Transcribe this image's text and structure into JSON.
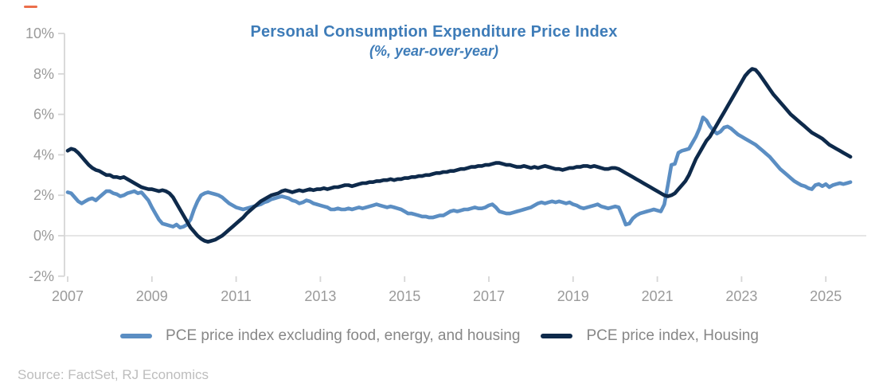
{
  "accent": {
    "dash_color": "#EB6E4B"
  },
  "source": "Source: FactSet, RJ Economics",
  "colors": {
    "title": "#3E7CB8",
    "axis_line": "#D6D6D6",
    "gridline": "#DDDDDD",
    "tick_label": "#9A9A9A",
    "legend_text": "#878787",
    "source_text": "#BDBDBD",
    "background": "#FFFFFF"
  },
  "chart_data": {
    "type": "line",
    "title": "Personal Consumption Expenditure Price Index",
    "subtitle": "(%, year-over-year)",
    "xlabel": "",
    "ylabel": "",
    "ylim": [
      -2,
      10
    ],
    "xlim": [
      2007,
      2025.75
    ],
    "legend_position": "bottom",
    "grid": "horizontal line at 0% only",
    "gridlines": {
      "horizontal_at": [
        0
      ]
    },
    "y_ticks": [
      {
        "label": "10%",
        "value": 10
      },
      {
        "label": "8%",
        "value": 8
      },
      {
        "label": "6%",
        "value": 6
      },
      {
        "label": "4%",
        "value": 4
      },
      {
        "label": "2%",
        "value": 2
      },
      {
        "label": "0%",
        "value": 0
      },
      {
        "label": "-2%",
        "value": -2
      }
    ],
    "x_ticks": [
      {
        "label": "2007",
        "value": 2007
      },
      {
        "label": "2009",
        "value": 2009
      },
      {
        "label": "2011",
        "value": 2011
      },
      {
        "label": "2013",
        "value": 2013
      },
      {
        "label": "2015",
        "value": 2015
      },
      {
        "label": "2017",
        "value": 2017
      },
      {
        "label": "2019",
        "value": 2019
      },
      {
        "label": "2021",
        "value": 2021
      },
      {
        "label": "2023",
        "value": 2023
      },
      {
        "label": "2025",
        "value": 2025
      }
    ],
    "series": [
      {
        "name": "PCE price index excluding food, energy, and housing",
        "color": "#5B8EC3",
        "x_start": 2007.0,
        "interval_years": 0.083333,
        "values": [
          2.15,
          2.1,
          1.9,
          1.7,
          1.6,
          1.7,
          1.8,
          1.85,
          1.75,
          1.9,
          2.05,
          2.2,
          2.2,
          2.1,
          2.05,
          1.95,
          2.0,
          2.1,
          2.15,
          2.2,
          2.1,
          2.15,
          1.95,
          1.75,
          1.4,
          1.1,
          0.8,
          0.6,
          0.55,
          0.5,
          0.45,
          0.55,
          0.4,
          0.45,
          0.55,
          0.8,
          1.3,
          1.7,
          2.0,
          2.1,
          2.15,
          2.1,
          2.05,
          2.0,
          1.9,
          1.75,
          1.6,
          1.5,
          1.4,
          1.35,
          1.3,
          1.35,
          1.4,
          1.45,
          1.5,
          1.55,
          1.65,
          1.7,
          1.8,
          1.85,
          1.9,
          1.95,
          1.9,
          1.85,
          1.75,
          1.7,
          1.6,
          1.65,
          1.75,
          1.7,
          1.6,
          1.55,
          1.5,
          1.45,
          1.4,
          1.3,
          1.3,
          1.35,
          1.3,
          1.3,
          1.35,
          1.3,
          1.35,
          1.4,
          1.35,
          1.4,
          1.45,
          1.5,
          1.55,
          1.5,
          1.45,
          1.4,
          1.45,
          1.4,
          1.35,
          1.3,
          1.2,
          1.1,
          1.1,
          1.05,
          1.0,
          0.95,
          0.95,
          0.9,
          0.9,
          0.95,
          1.0,
          1.0,
          1.1,
          1.2,
          1.25,
          1.2,
          1.25,
          1.3,
          1.3,
          1.35,
          1.4,
          1.35,
          1.35,
          1.4,
          1.5,
          1.55,
          1.4,
          1.2,
          1.15,
          1.1,
          1.1,
          1.15,
          1.2,
          1.25,
          1.3,
          1.35,
          1.4,
          1.5,
          1.6,
          1.65,
          1.6,
          1.65,
          1.7,
          1.65,
          1.7,
          1.65,
          1.6,
          1.65,
          1.55,
          1.5,
          1.4,
          1.35,
          1.4,
          1.45,
          1.5,
          1.55,
          1.45,
          1.4,
          1.35,
          1.4,
          1.45,
          1.4,
          1.0,
          0.55,
          0.6,
          0.85,
          1.0,
          1.1,
          1.15,
          1.2,
          1.25,
          1.3,
          1.25,
          1.2,
          1.55,
          2.5,
          3.5,
          3.55,
          4.1,
          4.2,
          4.25,
          4.3,
          4.6,
          4.9,
          5.3,
          5.85,
          5.7,
          5.4,
          5.2,
          5.05,
          5.15,
          5.35,
          5.4,
          5.3,
          5.15,
          5.0,
          4.9,
          4.8,
          4.7,
          4.6,
          4.5,
          4.35,
          4.2,
          4.05,
          3.9,
          3.7,
          3.5,
          3.3,
          3.15,
          3.0,
          2.85,
          2.7,
          2.6,
          2.5,
          2.45,
          2.35,
          2.3,
          2.5,
          2.55,
          2.45,
          2.55,
          2.4,
          2.5,
          2.55,
          2.6,
          2.55,
          2.6,
          2.65
        ]
      },
      {
        "name": "PCE price index, Housing",
        "color": "#0E2A4B",
        "x_start": 2007.0,
        "interval_years": 0.083333,
        "values": [
          4.2,
          4.3,
          4.25,
          4.1,
          3.9,
          3.7,
          3.5,
          3.35,
          3.25,
          3.2,
          3.1,
          3.0,
          3.0,
          2.9,
          2.9,
          2.85,
          2.9,
          2.8,
          2.7,
          2.6,
          2.5,
          2.4,
          2.35,
          2.3,
          2.3,
          2.25,
          2.2,
          2.25,
          2.2,
          2.1,
          1.9,
          1.6,
          1.3,
          1.0,
          0.7,
          0.4,
          0.2,
          0.0,
          -0.15,
          -0.25,
          -0.3,
          -0.25,
          -0.2,
          -0.1,
          0.0,
          0.15,
          0.3,
          0.45,
          0.6,
          0.75,
          0.9,
          1.1,
          1.25,
          1.4,
          1.55,
          1.7,
          1.8,
          1.9,
          2.0,
          2.05,
          2.1,
          2.2,
          2.25,
          2.2,
          2.15,
          2.2,
          2.25,
          2.2,
          2.25,
          2.3,
          2.25,
          2.3,
          2.3,
          2.35,
          2.3,
          2.35,
          2.4,
          2.4,
          2.45,
          2.5,
          2.5,
          2.45,
          2.5,
          2.55,
          2.6,
          2.6,
          2.65,
          2.65,
          2.7,
          2.7,
          2.75,
          2.75,
          2.8,
          2.75,
          2.8,
          2.8,
          2.85,
          2.85,
          2.9,
          2.9,
          2.95,
          2.95,
          3.0,
          3.0,
          3.05,
          3.1,
          3.1,
          3.15,
          3.15,
          3.2,
          3.2,
          3.25,
          3.3,
          3.3,
          3.35,
          3.4,
          3.4,
          3.45,
          3.45,
          3.5,
          3.5,
          3.55,
          3.6,
          3.6,
          3.55,
          3.5,
          3.5,
          3.45,
          3.4,
          3.4,
          3.45,
          3.4,
          3.35,
          3.4,
          3.35,
          3.4,
          3.45,
          3.4,
          3.35,
          3.3,
          3.3,
          3.25,
          3.3,
          3.35,
          3.35,
          3.4,
          3.4,
          3.45,
          3.45,
          3.4,
          3.45,
          3.4,
          3.35,
          3.3,
          3.3,
          3.35,
          3.35,
          3.3,
          3.2,
          3.1,
          3.0,
          2.9,
          2.8,
          2.7,
          2.6,
          2.5,
          2.4,
          2.3,
          2.2,
          2.1,
          2.0,
          1.95,
          2.0,
          2.1,
          2.3,
          2.5,
          2.7,
          3.0,
          3.4,
          3.8,
          4.1,
          4.4,
          4.7,
          4.9,
          5.2,
          5.5,
          5.8,
          6.1,
          6.4,
          6.7,
          7.0,
          7.3,
          7.6,
          7.9,
          8.1,
          8.25,
          8.2,
          8.0,
          7.75,
          7.5,
          7.25,
          7.0,
          6.8,
          6.6,
          6.4,
          6.2,
          6.0,
          5.85,
          5.7,
          5.55,
          5.4,
          5.25,
          5.1,
          5.0,
          4.9,
          4.8,
          4.65,
          4.5,
          4.4,
          4.3,
          4.2,
          4.1,
          4.0,
          3.9
        ]
      }
    ]
  }
}
